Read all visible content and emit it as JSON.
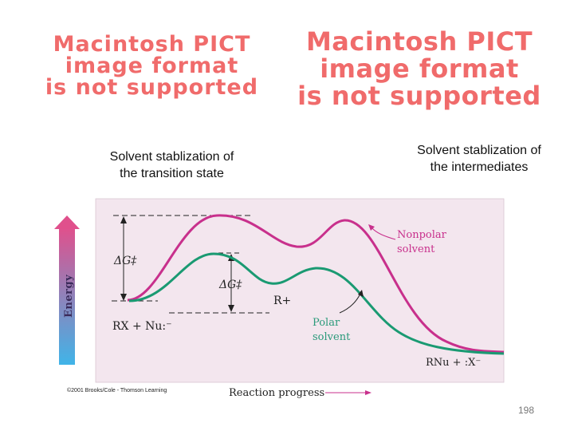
{
  "placeholder_left": {
    "lines": [
      "Macintosh PICT",
      "image format",
      "is not supported"
    ]
  },
  "placeholder_right": {
    "lines": [
      "Macintosh PICT",
      "image format",
      "is not supported"
    ]
  },
  "captions": {
    "left": [
      "Solvent stablization of",
      "the transition state"
    ],
    "right": [
      "Solvent stablization of",
      "the intermediates"
    ]
  },
  "diagram": {
    "energy_label": "Energy",
    "x_label": "Reaction progress",
    "delta_g_upper": "ΔG‡",
    "delta_g_lower": "ΔG‡",
    "intermediate_label": "R+",
    "reactants_label": "RX + Nu:⁻",
    "products_label": "RNu + :X⁻",
    "nonpolar_label": [
      "Nonpolar",
      "solvent"
    ],
    "polar_label": [
      "Polar",
      "solvent"
    ],
    "colors": {
      "background": "#f3e6ee",
      "nonpolar_curve": "#c8308c",
      "polar_curve": "#1a9a72",
      "annotation": "#c8308c",
      "polar_annotation": "#2a9a7a",
      "energy_arrow_top": "#e0508c",
      "energy_arrow_bottom": "#40b4e8"
    }
  },
  "copyright": "©2001 Brooks/Cole - Thomson Learning",
  "page_number": "198"
}
